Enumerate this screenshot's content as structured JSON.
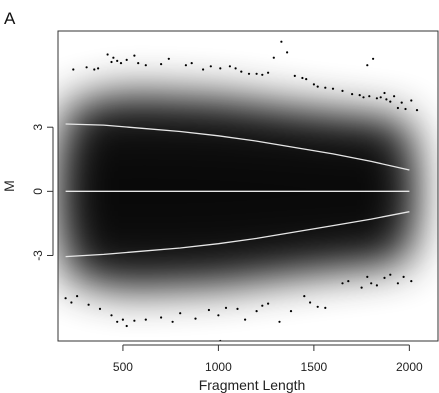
{
  "chart_data": {
    "type": "scatter",
    "panel_label": "A",
    "title": "",
    "xlabel": "Fragment Length",
    "ylabel": "M",
    "xlim": [
      160,
      2150
    ],
    "ylim": [
      -7.0,
      7.5
    ],
    "x_ticks": [
      500,
      1000,
      1500,
      2000
    ],
    "y_ticks": [
      -3,
      0,
      3
    ],
    "y_tick_labels": [
      "-3",
      "0",
      "3"
    ],
    "grid": false,
    "legend": "none",
    "density": {
      "color": "#000000",
      "x": [
        200,
        500,
        1000,
        1500,
        2000
      ],
      "half_width": [
        4.0,
        4.6,
        4.4,
        3.8,
        3.3
      ]
    },
    "series": [
      {
        "kind": "line",
        "color": "#e6e6e6",
        "x": [
          200,
          400,
          600,
          800,
          1000,
          1200,
          1400,
          1600,
          1800,
          2000
        ],
        "y": [
          3.15,
          3.1,
          2.95,
          2.8,
          2.6,
          2.35,
          2.05,
          1.75,
          1.4,
          1.0
        ]
      },
      {
        "kind": "line",
        "color": "#e6e6e6",
        "x": [
          200,
          2000
        ],
        "y": [
          0.0,
          0.0
        ]
      },
      {
        "kind": "line",
        "color": "#e6e6e6",
        "x": [
          200,
          400,
          600,
          800,
          1000,
          1200,
          1400,
          1600,
          1800,
          2000
        ],
        "y": [
          -3.05,
          -2.95,
          -2.8,
          -2.65,
          -2.45,
          -2.2,
          -1.9,
          -1.6,
          -1.3,
          -0.95
        ]
      },
      {
        "kind": "points",
        "color": "#000000",
        "points": [
          [
            240,
            5.7
          ],
          [
            310,
            5.8
          ],
          [
            350,
            5.7
          ],
          [
            370,
            5.75
          ],
          [
            420,
            6.4
          ],
          [
            440,
            6.05
          ],
          [
            450,
            6.25
          ],
          [
            470,
            6.1
          ],
          [
            490,
            6.0
          ],
          [
            520,
            6.15
          ],
          [
            560,
            6.35
          ],
          [
            580,
            6.0
          ],
          [
            620,
            5.9
          ],
          [
            700,
            5.95
          ],
          [
            740,
            6.2
          ],
          [
            830,
            5.9
          ],
          [
            860,
            6.0
          ],
          [
            920,
            5.7
          ],
          [
            960,
            5.85
          ],
          [
            1010,
            5.75
          ],
          [
            1060,
            5.85
          ],
          [
            1090,
            5.75
          ],
          [
            1120,
            5.6
          ],
          [
            1160,
            5.5
          ],
          [
            1200,
            5.5
          ],
          [
            1230,
            5.45
          ],
          [
            1260,
            5.55
          ],
          [
            1290,
            6.25
          ],
          [
            1330,
            7.0
          ],
          [
            1360,
            6.5
          ],
          [
            1400,
            5.4
          ],
          [
            1440,
            5.3
          ],
          [
            1460,
            5.25
          ],
          [
            1500,
            5.0
          ],
          [
            1520,
            4.9
          ],
          [
            1560,
            4.85
          ],
          [
            1600,
            4.8
          ],
          [
            1650,
            4.7
          ],
          [
            1700,
            4.55
          ],
          [
            1740,
            4.5
          ],
          [
            1760,
            4.4
          ],
          [
            1780,
            5.9
          ],
          [
            1790,
            4.45
          ],
          [
            1810,
            6.2
          ],
          [
            1830,
            4.35
          ],
          [
            1850,
            4.4
          ],
          [
            1870,
            4.6
          ],
          [
            1880,
            4.3
          ],
          [
            1900,
            4.2
          ],
          [
            1920,
            4.45
          ],
          [
            1940,
            3.9
          ],
          [
            1960,
            4.15
          ],
          [
            1980,
            3.85
          ],
          [
            2010,
            4.25
          ],
          [
            2040,
            3.8
          ],
          [
            200,
            -5.0
          ],
          [
            230,
            -5.2
          ],
          [
            260,
            -4.9
          ],
          [
            320,
            -5.3
          ],
          [
            380,
            -5.5
          ],
          [
            440,
            -5.8
          ],
          [
            470,
            -6.1
          ],
          [
            500,
            -6.0
          ],
          [
            520,
            -6.3
          ],
          [
            560,
            -6.05
          ],
          [
            620,
            -6.0
          ],
          [
            700,
            -5.9
          ],
          [
            760,
            -6.1
          ],
          [
            800,
            -5.7
          ],
          [
            880,
            -5.95
          ],
          [
            950,
            -5.55
          ],
          [
            1000,
            -5.8
          ],
          [
            1040,
            -5.45
          ],
          [
            1100,
            -5.5
          ],
          [
            1140,
            -6.0
          ],
          [
            1200,
            -5.6
          ],
          [
            1230,
            -5.35
          ],
          [
            1260,
            -5.25
          ],
          [
            1320,
            -6.1
          ],
          [
            1380,
            -5.6
          ],
          [
            1450,
            -4.9
          ],
          [
            1480,
            -5.2
          ],
          [
            1520,
            -5.4
          ],
          [
            1560,
            -5.45
          ],
          [
            1650,
            -4.3
          ],
          [
            1680,
            -4.2
          ],
          [
            1750,
            -4.5
          ],
          [
            1780,
            -4.0
          ],
          [
            1800,
            -4.3
          ],
          [
            1830,
            -4.4
          ],
          [
            1870,
            -4.05
          ],
          [
            1900,
            -3.9
          ],
          [
            1940,
            -4.3
          ],
          [
            1970,
            -4.0
          ],
          [
            2010,
            -4.2
          ],
          [
            1010,
            -7.0
          ]
        ]
      }
    ]
  }
}
